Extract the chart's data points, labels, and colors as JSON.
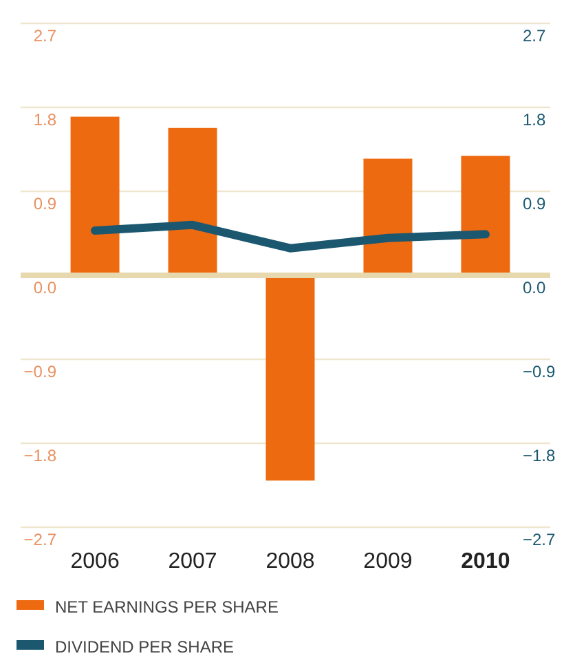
{
  "chart_data": {
    "type": "bar",
    "categories": [
      "2006",
      "2007",
      "2008",
      "2009",
      "2010"
    ],
    "series": [
      {
        "name": "NET EARNINGS PER SHARE",
        "color": "#ee6a10",
        "values": [
          1.7,
          1.58,
          -2.2,
          1.25,
          1.28
        ]
      },
      {
        "name": "DIVIDEND PER SHARE",
        "type": "line",
        "color": "#1b5870",
        "values": [
          0.48,
          0.54,
          0.29,
          0.4,
          0.44
        ]
      }
    ],
    "ylim": [
      -2.7,
      2.7
    ],
    "yticks": [
      {
        "value": -2.7,
        "label": "−2.7"
      },
      {
        "value": -1.8,
        "label": "−1.8"
      },
      {
        "value": -0.9,
        "label": "−0.9"
      },
      {
        "value": 0,
        "label": "0.0"
      },
      {
        "value": 0.9,
        "label": "0.9"
      },
      {
        "value": 1.8,
        "label": "1.8"
      },
      {
        "value": 2.7,
        "label": "2.7"
      }
    ],
    "y2lim": [
      -2.7,
      2.7
    ],
    "y2ticks": [
      {
        "value": -2.7,
        "label": "−2.7"
      },
      {
        "value": -1.8,
        "label": "−1.8"
      },
      {
        "value": -0.9,
        "label": "−0.9"
      },
      {
        "value": 0,
        "label": "0.0"
      },
      {
        "value": 0.9,
        "label": "0.9"
      },
      {
        "value": 1.8,
        "label": "1.8"
      },
      {
        "value": 2.7,
        "label": "2.7"
      }
    ],
    "ref_lines": [
      {
        "axis": "y",
        "value": 0,
        "color": "#e8d8ae"
      }
    ],
    "grid": "y",
    "legend": "bottom"
  }
}
